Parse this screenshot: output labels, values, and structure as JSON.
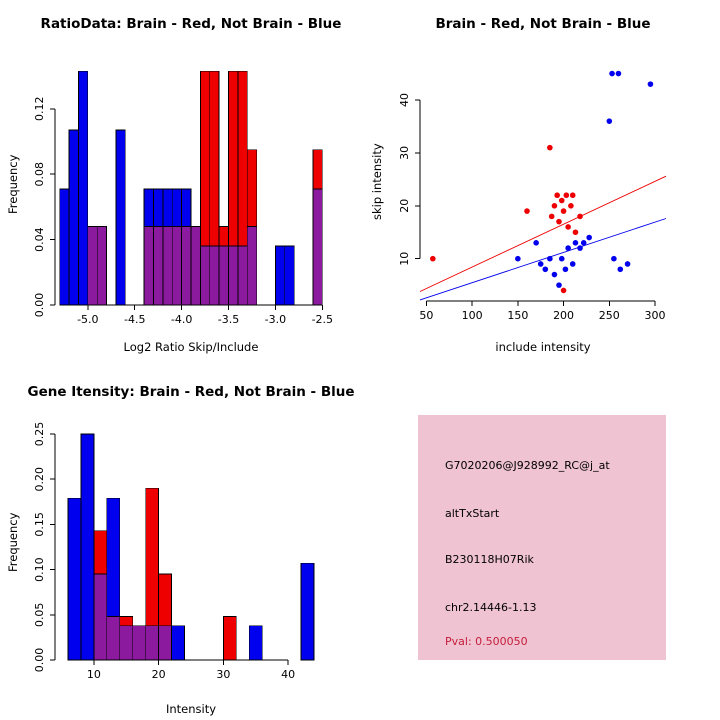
{
  "colors": {
    "background": "#FFFFFF",
    "axis": "#000000",
    "blue": "#0000EE",
    "red": "#EE0000",
    "overlap_purple": "#8B1A9E"
  },
  "chart_data": [
    {
      "id": "ratio-hist",
      "type": "bar",
      "title": "RatioData: Brain - Red, Not Brain - Blue",
      "xlabel": "Log2 Ratio Skip/Include",
      "ylabel": "Frequency",
      "xlim": [
        -5.35,
        -2.45
      ],
      "ylim": [
        0,
        0.148
      ],
      "xticks": [
        -5.0,
        -4.5,
        -4.0,
        -3.5,
        -3.0,
        -2.5
      ],
      "xtick_labels": [
        "-5.0",
        "-4.5",
        "-4.0",
        "-3.5",
        "-3.0",
        "-2.5"
      ],
      "yticks": [
        0,
        0.04,
        0.08,
        0.12
      ],
      "ytick_labels": [
        "0.00",
        "0.04",
        "0.08",
        "0.12"
      ],
      "grid": false,
      "legend": "none",
      "bin_start": -5.3,
      "bin_width": 0.1,
      "overlap_color": "#8B1A9E",
      "series": [
        {
          "name": "Not Brain (blue histogram)",
          "color": "#0000EE",
          "values": [
            0.071,
            0.107,
            0.143,
            0.048,
            0.048,
            0,
            0.107,
            0,
            0,
            0.071,
            0.071,
            0.071,
            0.071,
            0.071,
            0.048,
            0.036,
            0.036,
            0.036,
            0.036,
            0.036,
            0.048,
            0,
            0,
            0.036,
            0.036,
            0,
            0,
            0.071
          ]
        },
        {
          "name": "Brain (red histogram)",
          "color": "#EE0000",
          "values": [
            0,
            0,
            0,
            0.048,
            0.048,
            0,
            0,
            0,
            0,
            0.048,
            0.048,
            0.048,
            0.048,
            0.048,
            0.048,
            0.143,
            0.143,
            0.048,
            0.143,
            0.143,
            0.095,
            0,
            0,
            0,
            0,
            0,
            0,
            0.095
          ]
        }
      ]
    },
    {
      "id": "intensity-scatter",
      "type": "scatter",
      "title": "Brain - Red, Not Brain - Blue",
      "xlabel": "include intensity",
      "ylabel": "skip intensity",
      "xlim": [
        43,
        312
      ],
      "ylim": [
        2,
        47
      ],
      "xticks": [
        50,
        100,
        150,
        200,
        250,
        300
      ],
      "xtick_labels": [
        "50",
        "100",
        "150",
        "200",
        "250",
        "300"
      ],
      "yticks": [
        10,
        20,
        30,
        40
      ],
      "ytick_labels": [
        "10",
        "20",
        "30",
        "40"
      ],
      "grid": false,
      "legend": "none",
      "series": [
        {
          "name": "Brain (red)",
          "color": "#EE0000",
          "points": [
            [
              57,
              10
            ],
            [
              160,
              19
            ],
            [
              185,
              31
            ],
            [
              187,
              18
            ],
            [
              190,
              20
            ],
            [
              193,
              22
            ],
            [
              195,
              17
            ],
            [
              198,
              21
            ],
            [
              200,
              19
            ],
            [
              203,
              22
            ],
            [
              205,
              16
            ],
            [
              208,
              20
            ],
            [
              210,
              22
            ],
            [
              213,
              15
            ],
            [
              218,
              18
            ],
            [
              200,
              4
            ]
          ],
          "line": [
            [
              43,
              3.8
            ],
            [
              312,
              25.6
            ]
          ]
        },
        {
          "name": "Not Brain (blue)",
          "color": "#0000EE",
          "points": [
            [
              150,
              10
            ],
            [
              170,
              13
            ],
            [
              175,
              9
            ],
            [
              180,
              8
            ],
            [
              185,
              10
            ],
            [
              190,
              7
            ],
            [
              195,
              5
            ],
            [
              198,
              10
            ],
            [
              202,
              8
            ],
            [
              205,
              12
            ],
            [
              210,
              9
            ],
            [
              213,
              13
            ],
            [
              218,
              12
            ],
            [
              222,
              13
            ],
            [
              228,
              14
            ],
            [
              250,
              36
            ],
            [
              253,
              45
            ],
            [
              260,
              45
            ],
            [
              255,
              10
            ],
            [
              262,
              8
            ],
            [
              270,
              9
            ],
            [
              295,
              43
            ]
          ],
          "line": [
            [
              43,
              2.2
            ],
            [
              312,
              17.6
            ]
          ]
        }
      ]
    },
    {
      "id": "gene-hist",
      "type": "bar",
      "title": "Gene Itensity: Brain - Red, Not Brain - Blue",
      "xlabel": "Intensity",
      "ylabel": "Frequency",
      "xlim": [
        4,
        46
      ],
      "ylim": [
        0,
        0.26
      ],
      "xticks": [
        10,
        20,
        30,
        40
      ],
      "xtick_labels": [
        "10",
        "20",
        "30",
        "40"
      ],
      "yticks": [
        0,
        0.05,
        0.1,
        0.15,
        0.2,
        0.25
      ],
      "ytick_labels": [
        "0.00",
        "0.05",
        "0.10",
        "0.15",
        "0.20",
        "0.25"
      ],
      "grid": false,
      "legend": "none",
      "bin_start": 6,
      "bin_width": 2,
      "overlap_color": "#8B1A9E",
      "series": [
        {
          "name": "Not Brain (blue histogram)",
          "color": "#0000EE",
          "values": [
            0.179,
            0.25,
            0.095,
            0.179,
            0.038,
            0.038,
            0.038,
            0.038,
            0.038,
            0,
            0,
            0,
            0,
            0,
            0.038,
            0,
            0,
            0,
            0.107,
            0
          ]
        },
        {
          "name": "Brain (red histogram)",
          "color": "#EE0000",
          "values": [
            0,
            0,
            0.143,
            0.048,
            0.048,
            0.038,
            0.19,
            0.095,
            0,
            0,
            0,
            0,
            0.048,
            0,
            0,
            0,
            0,
            0,
            0,
            0
          ]
        }
      ]
    }
  ],
  "info_panel": {
    "bg": "#EFC3D2",
    "lines": [
      {
        "text": "G7020206@J928992_RC@j_at",
        "color": "#000000"
      },
      {
        "text": "altTxStart",
        "color": "#000000"
      },
      {
        "text": "B230118H07Rik",
        "color": "#000000"
      },
      {
        "text": "chr2.14446-1.13",
        "color": "#000000"
      },
      {
        "text": "Pval: 0.500050",
        "color": "#C41E3A"
      }
    ]
  }
}
